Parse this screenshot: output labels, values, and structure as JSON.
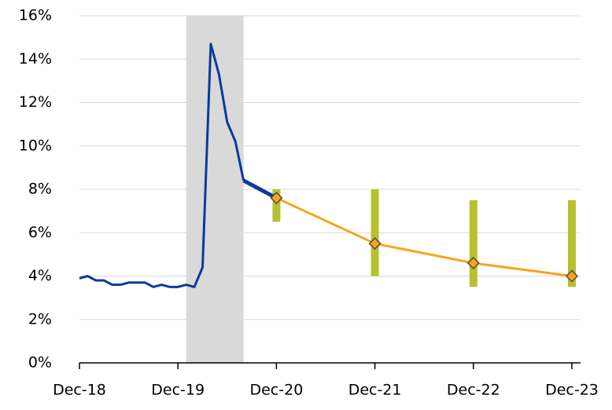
{
  "chart_data": {
    "type": "line",
    "xlim": [
      "Dec-18",
      "Dec-23"
    ],
    "xticks": [
      "Dec-18",
      "Dec-19",
      "Dec-20",
      "Dec-21",
      "Dec-22",
      "Dec-23"
    ],
    "ylim": [
      0,
      16
    ],
    "yticks": [
      {
        "value": 0,
        "label": "0%"
      },
      {
        "value": 2,
        "label": "2%"
      },
      {
        "value": 4,
        "label": "4%"
      },
      {
        "value": 6,
        "label": "6%"
      },
      {
        "value": 8,
        "label": "8%"
      },
      {
        "value": 10,
        "label": "10%"
      },
      {
        "value": 12,
        "label": "12%"
      },
      {
        "value": 14,
        "label": "14%"
      },
      {
        "value": 16,
        "label": "16%"
      }
    ],
    "grid": true,
    "shade": {
      "x": [
        "Jan-20",
        "Aug-20"
      ],
      "color": "#d9d9d9"
    },
    "ranges": {
      "color": "#b5c22e",
      "x": [
        "Dec-20",
        "Dec-21",
        "Dec-22",
        "Dec-23"
      ],
      "low": [
        6.5,
        4.0,
        3.5,
        3.5
      ],
      "high": [
        8.0,
        8.0,
        7.5,
        7.5
      ]
    },
    "series": [
      {
        "color": "#0a3a9e",
        "width": 3,
        "x": [
          "Dec-18",
          "Jan-19",
          "Feb-19",
          "Mar-19",
          "Apr-19",
          "May-19",
          "Jun-19",
          "Jul-19",
          "Aug-19",
          "Sep-19",
          "Oct-19",
          "Nov-19",
          "Dec-19",
          "Jan-20",
          "Feb-20",
          "Mar-20",
          "Apr-20",
          "May-20",
          "Jun-20",
          "Jul-20",
          "Aug-20"
        ],
        "values": [
          3.9,
          4.0,
          3.8,
          3.8,
          3.6,
          3.6,
          3.7,
          3.7,
          3.7,
          3.5,
          3.6,
          3.5,
          3.5,
          3.6,
          3.5,
          4.4,
          14.7,
          13.3,
          11.1,
          10.2,
          8.4
        ]
      },
      {
        "color": "#0a3a9e",
        "width": 5,
        "x": [
          "Aug-20",
          "Sep-20",
          "Oct-20",
          "Nov-20",
          "Dec-20"
        ],
        "values": [
          8.4,
          8.2,
          8.0,
          7.8,
          7.6
        ]
      },
      {
        "color": "#f7a41d",
        "width": 3,
        "marker": "diamond",
        "x": [
          "Dec-20",
          "Dec-21",
          "Dec-22",
          "Dec-23"
        ],
        "values": [
          7.6,
          5.5,
          4.6,
          4.0
        ]
      }
    ]
  }
}
